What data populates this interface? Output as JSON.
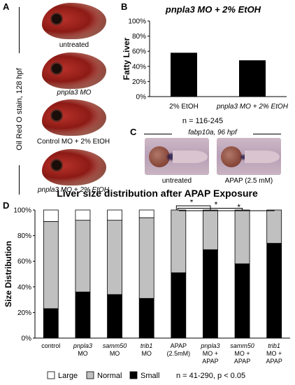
{
  "panel_a": {
    "letter": "A",
    "side_label": "Oil Red O stain, 128 hpf",
    "captions": [
      "untreated",
      "pnpla3 MO",
      "Control MO + 2% EtOH",
      "pnpla3 MO + 2% EtOH"
    ]
  },
  "panel_b": {
    "letter": "B",
    "title": "pnpla3 MO + 2% EtOH",
    "n_label": "n = 116-245"
  },
  "panel_c": {
    "letter": "C",
    "header": "fabp10a, 96 hpf",
    "captions": [
      "untreated",
      "APAP (2.5 mM)"
    ]
  },
  "panel_d": {
    "letter": "D",
    "title": "Liver size distribution after APAP Exposure",
    "legend": [
      "Large",
      "Normal",
      "Small"
    ],
    "stats_label": "n = 41-290, p < 0.05",
    "significance_marks": [
      "*",
      "*",
      "*"
    ]
  },
  "colors": {
    "small": "#000000",
    "normal": "#c0c0c0",
    "large": "#ffffff"
  },
  "chart_data": [
    {
      "type": "bar",
      "categories": [
        "2% EtOH",
        "pnpla3 MO + 2% EtOH"
      ],
      "values": [
        58,
        48
      ],
      "title": "pnpla3 MO + 2% EtOH",
      "xlabel": "",
      "ylabel": "Fatty Liver",
      "ylim": [
        0,
        100
      ],
      "yticks": [
        "0%",
        "20%",
        "40%",
        "60%",
        "80%",
        "100%"
      ],
      "grid": false
    },
    {
      "type": "bar",
      "stacked": true,
      "categories": [
        "control",
        "pnpla3 MO",
        "samm50 MO",
        "trib1 MO",
        "APAP (2.5mM)",
        "pnpla3 MO + APAP",
        "samm50 MO + APAP",
        "trib1 MO + APAP"
      ],
      "category_lines": [
        [
          "control"
        ],
        [
          "pnpla3",
          "MO"
        ],
        [
          "samm50",
          "MO"
        ],
        [
          "trib1",
          "MO"
        ],
        [
          "APAP",
          "(2.5mM)"
        ],
        [
          "pnpla3",
          "MO +",
          "APAP"
        ],
        [
          "samm50",
          "MO +",
          "APAP"
        ],
        [
          "trib1",
          "MO +",
          "APAP"
        ]
      ],
      "series": [
        {
          "name": "Small",
          "values": [
            23,
            36,
            34,
            31,
            51,
            69,
            58,
            74
          ]
        },
        {
          "name": "Normal",
          "values": [
            68,
            56,
            58,
            63,
            49,
            31,
            42,
            26
          ]
        },
        {
          "name": "Large",
          "values": [
            9,
            8,
            8,
            6,
            0,
            0,
            0,
            0
          ]
        }
      ],
      "title": "Liver size distribution after APAP Exposure",
      "xlabel": "",
      "ylabel": "Size Distribution",
      "ylim": [
        0,
        100
      ],
      "yticks": [
        "0%",
        "20%",
        "40%",
        "60%",
        "80%",
        "100%"
      ],
      "legend_position": "bottom",
      "grid": false
    }
  ]
}
